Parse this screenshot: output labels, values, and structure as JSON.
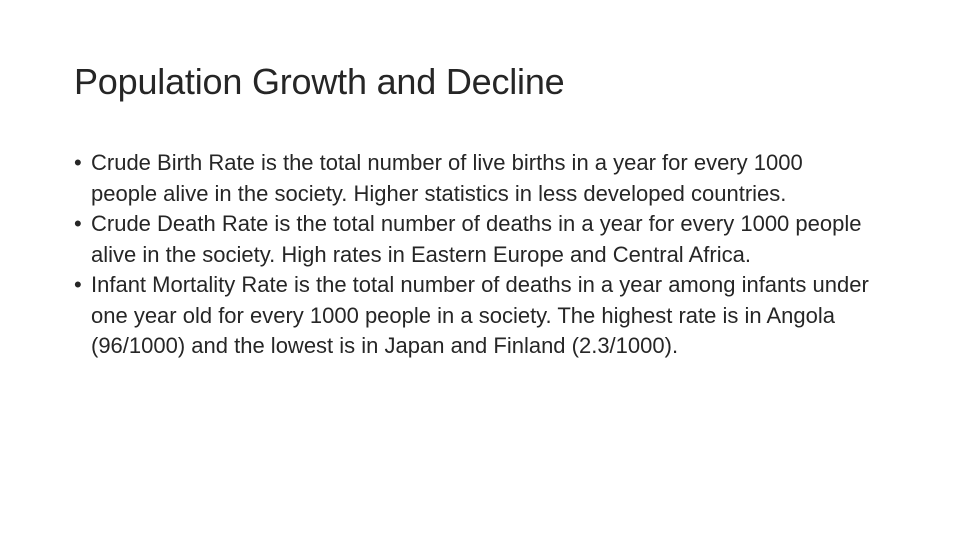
{
  "slide": {
    "title": "Population Growth and Decline",
    "bullet_marker": "•",
    "bullets": [
      {
        "text": "Crude Birth Rate is the total number of live births in a year for every 1000 people alive in the society. Higher statistics in less developed countries."
      },
      {
        "text": "Crude Death Rate is the total number of deaths in a year for every 1000 people alive in the society. High rates in Eastern Europe and Central Africa."
      },
      {
        "text": "Infant Mortality Rate is the total number of deaths in a year among infants under one year old for every 1000 people in a society. The highest rate is in Angola (96/1000) and the lowest is in Japan and Finland (2.3/1000)."
      }
    ]
  }
}
